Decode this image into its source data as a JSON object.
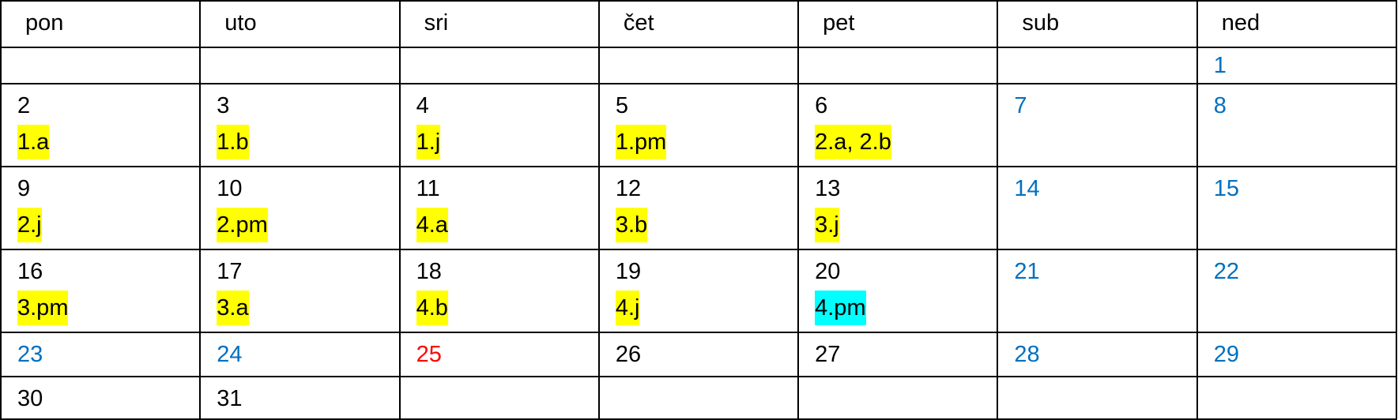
{
  "colors": {
    "weekend": "#0070C0",
    "holiday": "#FF0000",
    "highlight": "#FFFF00",
    "highlight_alt": "#00FFFF"
  },
  "headers": [
    "pon",
    "uto",
    "sri",
    "čet",
    "pet",
    "sub",
    "ned"
  ],
  "weeks": [
    [
      {
        "day": ""
      },
      {
        "day": ""
      },
      {
        "day": ""
      },
      {
        "day": ""
      },
      {
        "day": ""
      },
      {
        "day": ""
      },
      {
        "day": "1",
        "style": "blue"
      }
    ],
    [
      {
        "day": "2",
        "event": "1.a"
      },
      {
        "day": "3",
        "event": "1.b"
      },
      {
        "day": "4",
        "event": "1.j"
      },
      {
        "day": "5",
        "event": "1.pm"
      },
      {
        "day": "6",
        "event": "2.a, 2.b"
      },
      {
        "day": "7",
        "style": "blue"
      },
      {
        "day": "8",
        "style": "blue"
      }
    ],
    [
      {
        "day": "9",
        "event": "2.j"
      },
      {
        "day": "10",
        "event": "2.pm"
      },
      {
        "day": "11",
        "event": "4.a"
      },
      {
        "day": "12",
        "event": "3.b"
      },
      {
        "day": "13",
        "event": "3.j"
      },
      {
        "day": "14",
        "style": "blue"
      },
      {
        "day": "15",
        "style": "blue"
      }
    ],
    [
      {
        "day": "16",
        "event": "3.pm"
      },
      {
        "day": "17",
        "event": "3.a"
      },
      {
        "day": "18",
        "event": "4.b"
      },
      {
        "day": "19",
        "event": "4.j"
      },
      {
        "day": "20",
        "event": "4.pm",
        "highlight": "cyan"
      },
      {
        "day": "21",
        "style": "blue"
      },
      {
        "day": "22",
        "style": "blue"
      }
    ],
    [
      {
        "day": "23",
        "style": "blue"
      },
      {
        "day": "24",
        "style": "blue"
      },
      {
        "day": "25",
        "style": "red"
      },
      {
        "day": "26"
      },
      {
        "day": "27"
      },
      {
        "day": "28",
        "style": "blue"
      },
      {
        "day": "29",
        "style": "blue"
      }
    ],
    [
      {
        "day": "30"
      },
      {
        "day": "31"
      },
      {
        "day": ""
      },
      {
        "day": ""
      },
      {
        "day": ""
      },
      {
        "day": ""
      },
      {
        "day": ""
      }
    ]
  ]
}
